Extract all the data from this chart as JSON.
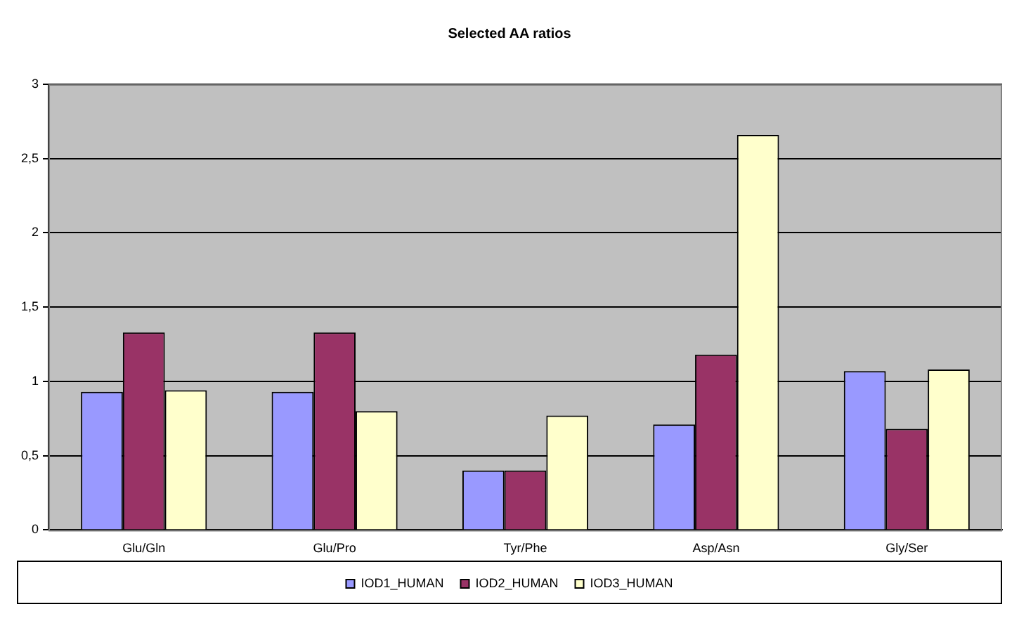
{
  "chart_data": {
    "type": "bar",
    "title": "Selected AA ratios",
    "categories": [
      "Glu/Gln",
      "Glu/Pro",
      "Tyr/Phe",
      "Asp/Asn",
      "Gly/Ser"
    ],
    "series": [
      {
        "name": "IOD1_HUMAN",
        "color": "#9999ff",
        "values": [
          0.93,
          0.93,
          0.4,
          0.71,
          1.07
        ]
      },
      {
        "name": "IOD2_HUMAN",
        "color": "#993366",
        "values": [
          1.33,
          1.33,
          0.4,
          1.18,
          0.68
        ]
      },
      {
        "name": "IOD3_HUMAN",
        "color": "#ffffcc",
        "values": [
          0.94,
          0.8,
          0.77,
          2.66,
          1.08
        ]
      }
    ],
    "ylim": [
      0,
      3
    ],
    "yticks": [
      0,
      {
        "value": 0.5,
        "label": "0,5"
      },
      1,
      {
        "value": 1.5,
        "label": "1,5"
      },
      2,
      {
        "value": 2.5,
        "label": "2,5"
      },
      3
    ],
    "grid": "y",
    "legend": "bottom"
  }
}
